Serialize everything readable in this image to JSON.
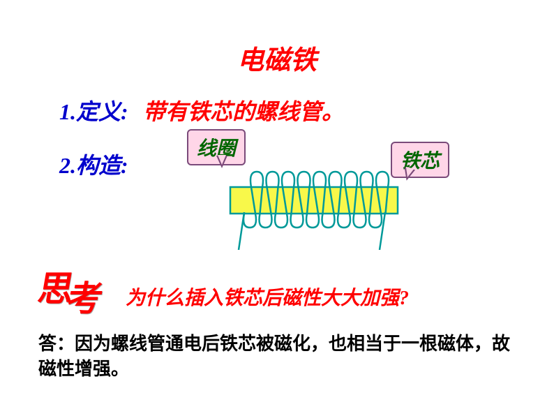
{
  "title": {
    "text": "电磁铁",
    "color": "#ff0000"
  },
  "def": {
    "label": "1.定义:",
    "label_color": "#0000cc",
    "text": "带有铁芯的螺线管。",
    "text_color": "#ff0000"
  },
  "struct": {
    "label": "2.构造:",
    "label_color": "#0000cc"
  },
  "callout_coil": {
    "text": "线圈",
    "color": "#006600"
  },
  "callout_core": {
    "text": "铁芯",
    "color": "#006600"
  },
  "diagram": {
    "core_fill": "#f8f84a",
    "core_stroke": "#009999",
    "coil_stroke": "#009999",
    "coil_stroke_width": 2.5,
    "turns": 9
  },
  "think": {
    "text": "思考",
    "color": "#ff0000"
  },
  "question": {
    "text": "为什么插入铁芯后磁性大大加强?",
    "color": "#ff0000"
  },
  "answer": {
    "text": "答：因为螺线管通电后铁芯被磁化，也相当于一根磁体，故磁性增强。",
    "color": "#000000"
  }
}
